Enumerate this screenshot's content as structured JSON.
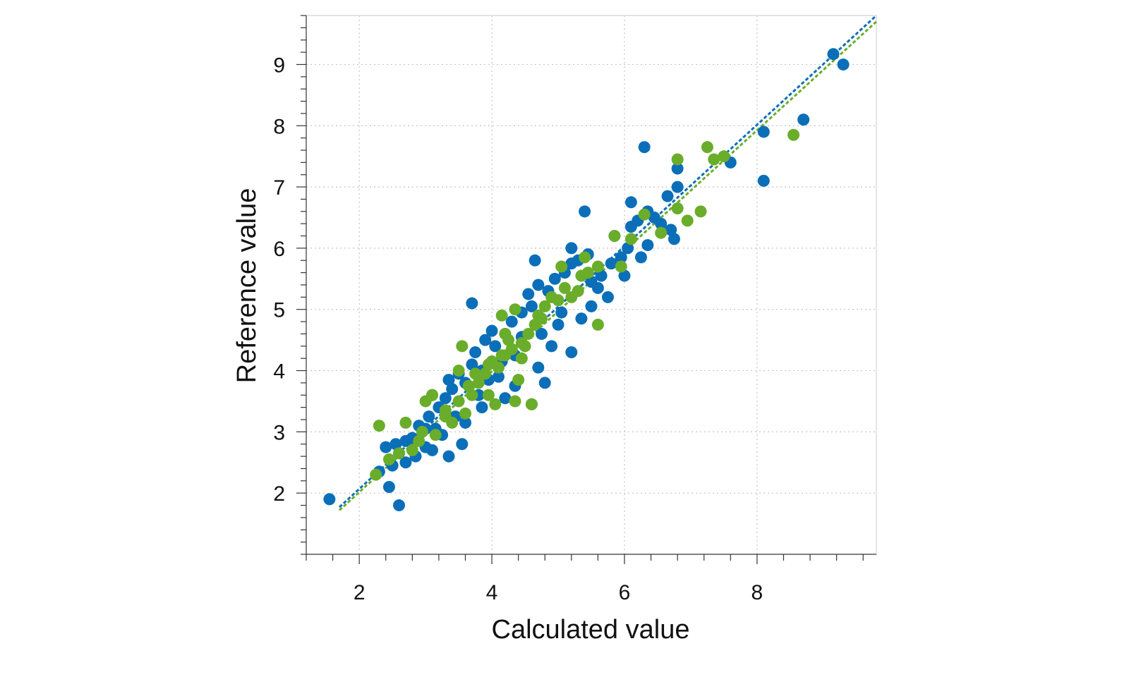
{
  "chart_data": {
    "type": "scatter",
    "title": "",
    "xlabel": "Calculated value",
    "ylabel": "Reference value",
    "xlim": [
      1.2,
      9.8
    ],
    "ylim": [
      1.0,
      9.8
    ],
    "x_ticks": [
      2,
      4,
      6,
      8
    ],
    "y_ticks": [
      2,
      3,
      4,
      5,
      6,
      7,
      8,
      9
    ],
    "grid": true,
    "legend": "none",
    "series": [
      {
        "color": "#0a6fb8",
        "trend_line": {
          "x": [
            1.7,
            9.8
          ],
          "y": [
            1.77,
            9.8
          ]
        },
        "points": [
          [
            1.55,
            1.9
          ],
          [
            2.6,
            1.8
          ],
          [
            2.45,
            2.1
          ],
          [
            2.3,
            2.35
          ],
          [
            2.5,
            2.45
          ],
          [
            2.7,
            2.5
          ],
          [
            2.6,
            2.65
          ],
          [
            2.4,
            2.75
          ],
          [
            2.55,
            2.8
          ],
          [
            2.8,
            2.9
          ],
          [
            3.0,
            2.75
          ],
          [
            3.1,
            2.7
          ],
          [
            3.35,
            2.6
          ],
          [
            3.55,
            2.8
          ],
          [
            2.9,
            3.1
          ],
          [
            3.05,
            3.25
          ],
          [
            3.2,
            3.4
          ],
          [
            3.3,
            3.55
          ],
          [
            3.1,
            3.6
          ],
          [
            3.4,
            3.7
          ],
          [
            3.6,
            3.8
          ],
          [
            3.35,
            3.85
          ],
          [
            3.5,
            3.95
          ],
          [
            3.7,
            4.1
          ],
          [
            3.85,
            4.0
          ],
          [
            3.95,
            3.85
          ],
          [
            3.75,
            4.3
          ],
          [
            3.9,
            4.5
          ],
          [
            4.05,
            4.4
          ],
          [
            4.2,
            4.6
          ],
          [
            4.3,
            4.8
          ],
          [
            4.0,
            4.65
          ],
          [
            4.45,
            4.95
          ],
          [
            4.6,
            5.05
          ],
          [
            4.55,
            5.25
          ],
          [
            4.7,
            5.4
          ],
          [
            4.85,
            5.3
          ],
          [
            4.95,
            5.5
          ],
          [
            5.1,
            5.6
          ],
          [
            5.2,
            5.75
          ],
          [
            5.3,
            5.8
          ],
          [
            5.45,
            5.9
          ],
          [
            5.5,
            5.45
          ],
          [
            5.6,
            5.35
          ],
          [
            5.75,
            5.2
          ],
          [
            5.8,
            5.75
          ],
          [
            5.95,
            5.85
          ],
          [
            6.05,
            6.0
          ],
          [
            6.1,
            6.35
          ],
          [
            6.2,
            6.45
          ],
          [
            6.35,
            6.6
          ],
          [
            6.45,
            6.5
          ],
          [
            6.55,
            6.4
          ],
          [
            6.65,
            6.85
          ],
          [
            6.7,
            6.3
          ],
          [
            6.75,
            6.15
          ],
          [
            6.8,
            7.0
          ],
          [
            6.8,
            7.3
          ],
          [
            6.3,
            7.65
          ],
          [
            6.1,
            6.75
          ],
          [
            5.4,
            6.6
          ],
          [
            4.65,
            5.8
          ],
          [
            3.7,
            5.1
          ],
          [
            5.2,
            6.0
          ],
          [
            7.6,
            7.4
          ],
          [
            8.1,
            7.9
          ],
          [
            8.1,
            7.1
          ],
          [
            8.7,
            8.1
          ],
          [
            9.15,
            9.17
          ],
          [
            9.3,
            9.0
          ],
          [
            4.8,
            3.8
          ],
          [
            4.6,
            3.45
          ],
          [
            5.2,
            4.3
          ],
          [
            4.9,
            4.4
          ],
          [
            4.35,
            3.75
          ],
          [
            4.7,
            4.05
          ],
          [
            5.0,
            4.75
          ],
          [
            5.35,
            4.85
          ],
          [
            5.65,
            5.55
          ],
          [
            6.25,
            5.85
          ],
          [
            6.35,
            6.05
          ],
          [
            5.85,
            6.2
          ],
          [
            4.2,
            3.55
          ],
          [
            3.85,
            3.4
          ],
          [
            3.0,
            3.05
          ],
          [
            2.85,
            2.6
          ],
          [
            3.25,
            2.95
          ],
          [
            3.6,
            3.15
          ],
          [
            4.15,
            4.15
          ],
          [
            4.45,
            4.55
          ],
          [
            5.05,
            4.95
          ],
          [
            5.5,
            5.05
          ],
          [
            6.0,
            5.55
          ],
          [
            2.7,
            2.85
          ],
          [
            3.15,
            3.05
          ],
          [
            3.45,
            3.25
          ],
          [
            3.8,
            3.6
          ],
          [
            4.1,
            3.9
          ],
          [
            4.35,
            4.25
          ],
          [
            4.75,
            4.6
          ]
        ]
      },
      {
        "color": "#6aad2a",
        "trend_line": {
          "x": [
            1.7,
            9.8
          ],
          "y": [
            1.72,
            9.7
          ]
        },
        "points": [
          [
            2.25,
            2.3
          ],
          [
            2.3,
            3.1
          ],
          [
            2.45,
            2.55
          ],
          [
            2.6,
            2.65
          ],
          [
            2.7,
            3.15
          ],
          [
            2.8,
            2.7
          ],
          [
            2.9,
            2.85
          ],
          [
            3.0,
            3.5
          ],
          [
            3.1,
            3.6
          ],
          [
            3.3,
            3.25
          ],
          [
            3.4,
            3.15
          ],
          [
            3.5,
            3.5
          ],
          [
            3.5,
            4.0
          ],
          [
            3.55,
            4.4
          ],
          [
            3.6,
            3.3
          ],
          [
            3.7,
            3.6
          ],
          [
            3.8,
            3.8
          ],
          [
            3.9,
            3.95
          ],
          [
            4.0,
            4.15
          ],
          [
            4.05,
            3.45
          ],
          [
            4.15,
            4.25
          ],
          [
            4.2,
            4.6
          ],
          [
            4.3,
            4.35
          ],
          [
            4.35,
            3.5
          ],
          [
            4.45,
            4.2
          ],
          [
            4.5,
            4.4
          ],
          [
            4.6,
            3.45
          ],
          [
            4.55,
            4.6
          ],
          [
            4.65,
            4.75
          ],
          [
            4.7,
            4.9
          ],
          [
            4.8,
            5.05
          ],
          [
            4.9,
            5.2
          ],
          [
            5.0,
            5.15
          ],
          [
            5.1,
            5.35
          ],
          [
            5.2,
            5.2
          ],
          [
            5.3,
            5.3
          ],
          [
            5.35,
            5.55
          ],
          [
            5.45,
            5.6
          ],
          [
            5.6,
            4.75
          ],
          [
            5.6,
            5.7
          ],
          [
            5.85,
            6.2
          ],
          [
            5.95,
            5.7
          ],
          [
            6.1,
            6.15
          ],
          [
            6.3,
            6.55
          ],
          [
            6.55,
            6.25
          ],
          [
            6.8,
            6.65
          ],
          [
            6.8,
            7.45
          ],
          [
            6.95,
            6.45
          ],
          [
            7.15,
            6.6
          ],
          [
            7.25,
            7.65
          ],
          [
            7.35,
            7.45
          ],
          [
            7.5,
            7.5
          ],
          [
            8.55,
            7.85
          ],
          [
            4.15,
            4.9
          ],
          [
            4.35,
            5.0
          ],
          [
            3.95,
            3.6
          ],
          [
            4.4,
            3.85
          ],
          [
            4.25,
            4.5
          ],
          [
            4.75,
            4.85
          ],
          [
            5.05,
            5.7
          ],
          [
            5.4,
            5.85
          ],
          [
            2.95,
            3.0
          ],
          [
            3.15,
            2.95
          ],
          [
            3.3,
            3.35
          ],
          [
            3.65,
            3.75
          ],
          [
            3.75,
            3.95
          ],
          [
            3.95,
            4.1
          ],
          [
            4.1,
            4.05
          ],
          [
            4.2,
            4.25
          ],
          [
            4.45,
            4.45
          ]
        ]
      }
    ]
  }
}
